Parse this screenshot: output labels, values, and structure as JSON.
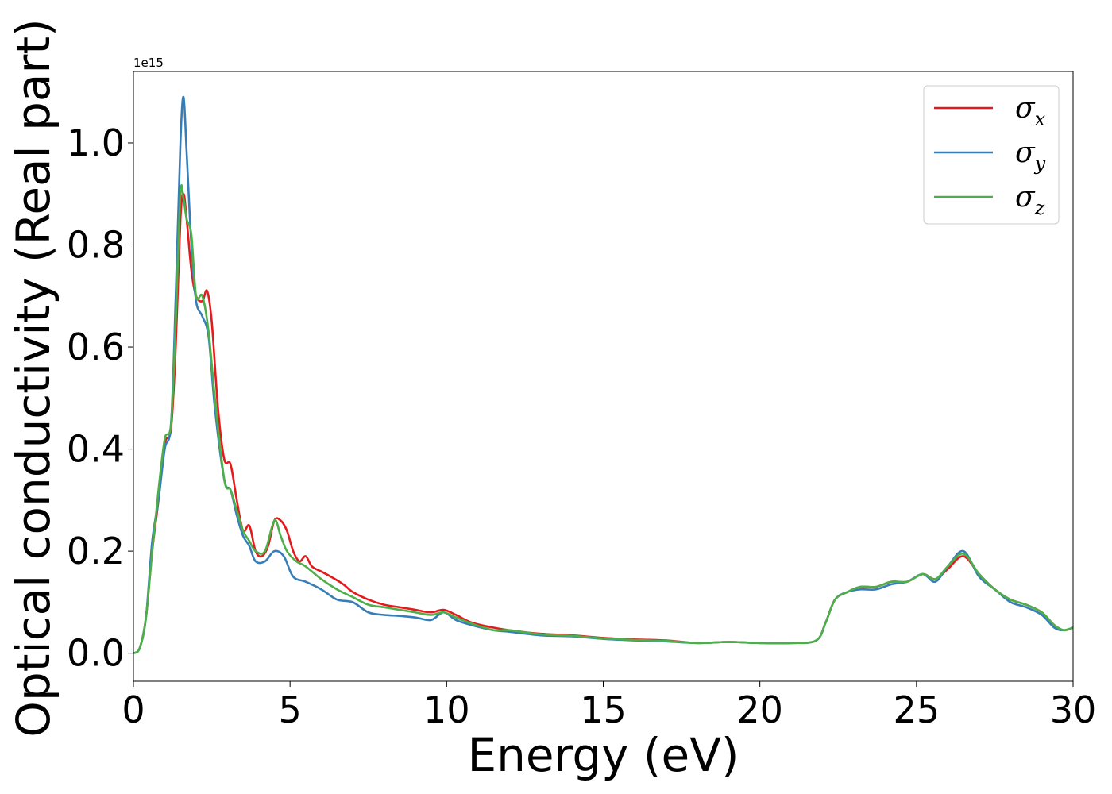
{
  "chart_data": {
    "type": "line",
    "title": "",
    "xlabel": "Energy (eV)",
    "ylabel": "Optical conductivity (Real part)",
    "offset_text": "1e15",
    "xlim": [
      0,
      30
    ],
    "ylim": [
      -0.055,
      1.14
    ],
    "x_scale_note": "",
    "xticks": [
      0,
      5,
      10,
      15,
      20,
      25,
      30
    ],
    "xtick_labels": [
      "0",
      "5",
      "10",
      "15",
      "20",
      "25",
      "30"
    ],
    "yticks": [
      0.0,
      0.2,
      0.4,
      0.6,
      0.8,
      1.0
    ],
    "ytick_labels": [
      "0.0",
      "0.2",
      "0.4",
      "0.6",
      "0.8",
      "1.0"
    ],
    "grid": false,
    "legend_position": "top-right",
    "series": [
      {
        "name": "σ",
        "subscript": "x",
        "color": "#e41a1c",
        "points": [
          [
            0,
            0
          ],
          [
            0.2,
            0.01
          ],
          [
            0.4,
            0.07
          ],
          [
            0.6,
            0.2
          ],
          [
            0.8,
            0.3
          ],
          [
            1.0,
            0.41
          ],
          [
            1.2,
            0.44
          ],
          [
            1.35,
            0.6
          ],
          [
            1.5,
            0.85
          ],
          [
            1.6,
            0.9
          ],
          [
            1.7,
            0.85
          ],
          [
            1.85,
            0.75
          ],
          [
            2.0,
            0.7
          ],
          [
            2.2,
            0.69
          ],
          [
            2.35,
            0.71
          ],
          [
            2.5,
            0.65
          ],
          [
            2.7,
            0.48
          ],
          [
            2.9,
            0.38
          ],
          [
            3.1,
            0.37
          ],
          [
            3.3,
            0.3
          ],
          [
            3.5,
            0.24
          ],
          [
            3.7,
            0.25
          ],
          [
            3.9,
            0.2
          ],
          [
            4.1,
            0.19
          ],
          [
            4.3,
            0.21
          ],
          [
            4.5,
            0.26
          ],
          [
            4.7,
            0.26
          ],
          [
            4.9,
            0.24
          ],
          [
            5.1,
            0.2
          ],
          [
            5.3,
            0.18
          ],
          [
            5.5,
            0.19
          ],
          [
            5.7,
            0.17
          ],
          [
            6.0,
            0.16
          ],
          [
            6.3,
            0.15
          ],
          [
            6.7,
            0.135
          ],
          [
            7.0,
            0.12
          ],
          [
            7.5,
            0.105
          ],
          [
            8.0,
            0.095
          ],
          [
            8.5,
            0.09
          ],
          [
            9.0,
            0.085
          ],
          [
            9.5,
            0.08
          ],
          [
            9.9,
            0.085
          ],
          [
            10.3,
            0.075
          ],
          [
            10.8,
            0.06
          ],
          [
            11.5,
            0.05
          ],
          [
            12.0,
            0.045
          ],
          [
            13.0,
            0.038
          ],
          [
            14.0,
            0.035
          ],
          [
            15.0,
            0.03
          ],
          [
            16.0,
            0.027
          ],
          [
            17.0,
            0.025
          ],
          [
            18.0,
            0.02
          ],
          [
            19.0,
            0.022
          ],
          [
            20.0,
            0.02
          ],
          [
            21.0,
            0.02
          ],
          [
            21.8,
            0.025
          ],
          [
            22.1,
            0.06
          ],
          [
            22.4,
            0.105
          ],
          [
            22.8,
            0.12
          ],
          [
            23.2,
            0.13
          ],
          [
            23.7,
            0.13
          ],
          [
            24.2,
            0.14
          ],
          [
            24.7,
            0.14
          ],
          [
            25.2,
            0.155
          ],
          [
            25.6,
            0.145
          ],
          [
            26.0,
            0.165
          ],
          [
            26.5,
            0.19
          ],
          [
            27.0,
            0.155
          ],
          [
            27.5,
            0.125
          ],
          [
            28.0,
            0.105
          ],
          [
            28.5,
            0.095
          ],
          [
            29.0,
            0.08
          ],
          [
            29.4,
            0.055
          ],
          [
            29.7,
            0.045
          ],
          [
            30.0,
            0.05
          ]
        ]
      },
      {
        "name": "σ",
        "subscript": "y",
        "color": "#377eb8",
        "points": [
          [
            0,
            0
          ],
          [
            0.2,
            0.01
          ],
          [
            0.4,
            0.07
          ],
          [
            0.6,
            0.22
          ],
          [
            0.8,
            0.3
          ],
          [
            1.0,
            0.4
          ],
          [
            1.2,
            0.45
          ],
          [
            1.35,
            0.7
          ],
          [
            1.5,
            1.0
          ],
          [
            1.6,
            1.09
          ],
          [
            1.7,
            0.98
          ],
          [
            1.85,
            0.8
          ],
          [
            2.0,
            0.69
          ],
          [
            2.2,
            0.66
          ],
          [
            2.4,
            0.62
          ],
          [
            2.6,
            0.48
          ],
          [
            2.9,
            0.34
          ],
          [
            3.1,
            0.32
          ],
          [
            3.3,
            0.27
          ],
          [
            3.5,
            0.23
          ],
          [
            3.7,
            0.21
          ],
          [
            3.9,
            0.18
          ],
          [
            4.2,
            0.18
          ],
          [
            4.5,
            0.2
          ],
          [
            4.8,
            0.19
          ],
          [
            5.1,
            0.15
          ],
          [
            5.5,
            0.14
          ],
          [
            6.0,
            0.125
          ],
          [
            6.5,
            0.105
          ],
          [
            7.0,
            0.1
          ],
          [
            7.5,
            0.08
          ],
          [
            8.0,
            0.075
          ],
          [
            8.5,
            0.073
          ],
          [
            9.0,
            0.07
          ],
          [
            9.5,
            0.065
          ],
          [
            9.9,
            0.08
          ],
          [
            10.3,
            0.065
          ],
          [
            10.8,
            0.055
          ],
          [
            11.5,
            0.045
          ],
          [
            12.0,
            0.042
          ],
          [
            13.0,
            0.035
          ],
          [
            14.0,
            0.033
          ],
          [
            15.0,
            0.028
          ],
          [
            16.0,
            0.025
          ],
          [
            17.0,
            0.023
          ],
          [
            18.0,
            0.02
          ],
          [
            19.0,
            0.022
          ],
          [
            20.0,
            0.02
          ],
          [
            21.0,
            0.02
          ],
          [
            21.8,
            0.025
          ],
          [
            22.1,
            0.06
          ],
          [
            22.4,
            0.105
          ],
          [
            22.8,
            0.12
          ],
          [
            23.2,
            0.125
          ],
          [
            23.7,
            0.125
          ],
          [
            24.2,
            0.135
          ],
          [
            24.7,
            0.14
          ],
          [
            25.2,
            0.155
          ],
          [
            25.6,
            0.14
          ],
          [
            26.0,
            0.17
          ],
          [
            26.5,
            0.2
          ],
          [
            27.0,
            0.15
          ],
          [
            27.5,
            0.125
          ],
          [
            28.0,
            0.1
          ],
          [
            28.5,
            0.09
          ],
          [
            29.0,
            0.075
          ],
          [
            29.4,
            0.05
          ],
          [
            29.7,
            0.045
          ],
          [
            30.0,
            0.05
          ]
        ]
      },
      {
        "name": "σ",
        "subscript": "z",
        "color": "#4daf4a",
        "points": [
          [
            0,
            0
          ],
          [
            0.2,
            0.01
          ],
          [
            0.4,
            0.07
          ],
          [
            0.6,
            0.2
          ],
          [
            0.8,
            0.32
          ],
          [
            1.0,
            0.42
          ],
          [
            1.2,
            0.45
          ],
          [
            1.35,
            0.65
          ],
          [
            1.5,
            0.9
          ],
          [
            1.6,
            0.89
          ],
          [
            1.7,
            0.85
          ],
          [
            1.85,
            0.82
          ],
          [
            2.0,
            0.7
          ],
          [
            2.2,
            0.7
          ],
          [
            2.4,
            0.63
          ],
          [
            2.6,
            0.5
          ],
          [
            2.9,
            0.34
          ],
          [
            3.1,
            0.32
          ],
          [
            3.3,
            0.28
          ],
          [
            3.5,
            0.24
          ],
          [
            3.7,
            0.22
          ],
          [
            3.9,
            0.2
          ],
          [
            4.2,
            0.2
          ],
          [
            4.5,
            0.26
          ],
          [
            4.7,
            0.23
          ],
          [
            4.9,
            0.2
          ],
          [
            5.2,
            0.18
          ],
          [
            5.5,
            0.17
          ],
          [
            6.0,
            0.145
          ],
          [
            6.5,
            0.125
          ],
          [
            7.0,
            0.11
          ],
          [
            7.5,
            0.095
          ],
          [
            8.0,
            0.09
          ],
          [
            8.5,
            0.085
          ],
          [
            9.0,
            0.08
          ],
          [
            9.5,
            0.075
          ],
          [
            9.9,
            0.08
          ],
          [
            10.3,
            0.07
          ],
          [
            10.8,
            0.058
          ],
          [
            11.5,
            0.045
          ],
          [
            12.0,
            0.045
          ],
          [
            13.0,
            0.037
          ],
          [
            14.0,
            0.034
          ],
          [
            15.0,
            0.029
          ],
          [
            16.0,
            0.026
          ],
          [
            17.0,
            0.024
          ],
          [
            18.0,
            0.02
          ],
          [
            19.0,
            0.022
          ],
          [
            20.0,
            0.02
          ],
          [
            21.0,
            0.02
          ],
          [
            21.8,
            0.025
          ],
          [
            22.1,
            0.06
          ],
          [
            22.4,
            0.105
          ],
          [
            22.8,
            0.12
          ],
          [
            23.2,
            0.13
          ],
          [
            23.7,
            0.13
          ],
          [
            24.2,
            0.14
          ],
          [
            24.7,
            0.14
          ],
          [
            25.2,
            0.155
          ],
          [
            25.6,
            0.145
          ],
          [
            26.0,
            0.17
          ],
          [
            26.5,
            0.195
          ],
          [
            27.0,
            0.155
          ],
          [
            27.5,
            0.125
          ],
          [
            28.0,
            0.105
          ],
          [
            28.5,
            0.095
          ],
          [
            29.0,
            0.08
          ],
          [
            29.4,
            0.055
          ],
          [
            29.7,
            0.045
          ],
          [
            30.0,
            0.05
          ]
        ]
      }
    ]
  }
}
